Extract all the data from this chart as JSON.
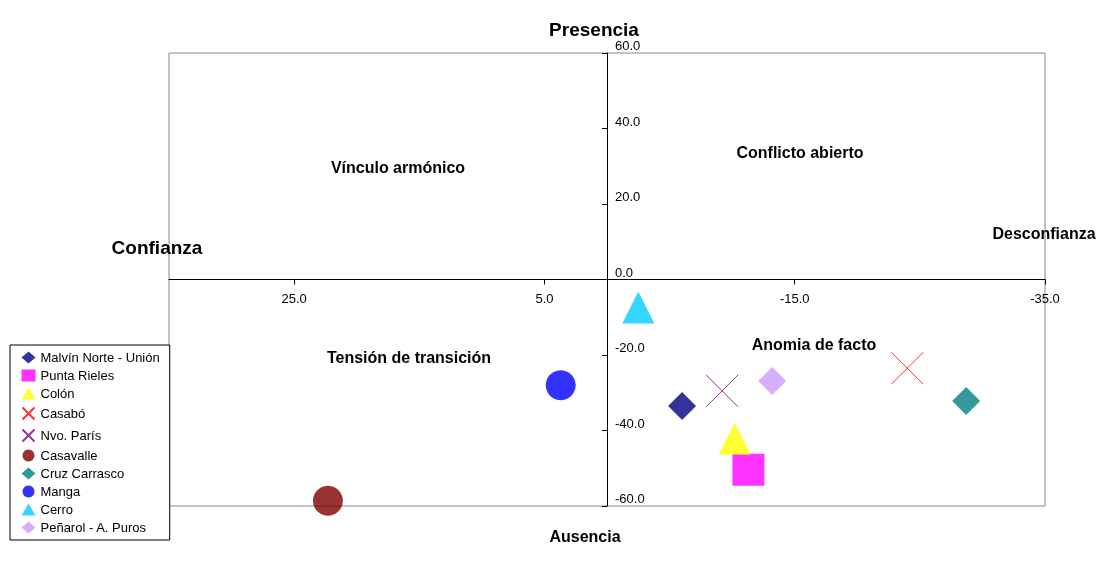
{
  "chart_data": {
    "type": "scatter",
    "annotations": [
      "Presencia",
      "Ausencia",
      "Confianza",
      "Desconfianza",
      "Vínculo armónico",
      "Conflicto abierto",
      "Tensión de transición",
      "Anomia de facto"
    ],
    "xlim": [
      35,
      -35
    ],
    "xticks": [
      {
        "value": 25,
        "label": "25.0"
      },
      {
        "value": 5,
        "label": "5.0"
      },
      {
        "value": -15,
        "label": "-15.0"
      },
      {
        "value": -35,
        "label": "-35.0"
      }
    ],
    "ylim": [
      -60,
      60
    ],
    "yticks": [
      {
        "value": -60,
        "label": "-60.0"
      },
      {
        "value": -40,
        "label": "-40.0"
      },
      {
        "value": -20,
        "label": "-20.0"
      },
      {
        "value": 0,
        "label": "0.0"
      },
      {
        "value": 20,
        "label": "20.0"
      },
      {
        "value": 40,
        "label": "40.0"
      },
      {
        "value": 60,
        "label": "60.0"
      }
    ],
    "grid": false,
    "legend": "bottom left",
    "series": [
      {
        "name": "Malvín Norte - Unión",
        "color": "#000080",
        "marker": "diamond",
        "x": [
          -6
        ],
        "values": [
          -33.5
        ]
      },
      {
        "name": "Punta Rieles",
        "color": "#ff00ff",
        "marker": "square",
        "x": [
          -11.3
        ],
        "values": [
          -50.4
        ]
      },
      {
        "name": "Colón",
        "color": "#ffff00",
        "marker": "triangle",
        "x": [
          -10.2
        ],
        "values": [
          -42.2
        ]
      },
      {
        "name": "Casabó",
        "color": "#ff0000",
        "marker": "cross",
        "x": [
          -24
        ],
        "values": [
          -23.5
        ]
      },
      {
        "name": "Nvo. París",
        "color": "#800080",
        "marker": "cross",
        "x": [
          -9.2
        ],
        "values": [
          -29.5
        ]
      },
      {
        "name": "Casavalle",
        "color": "#800000",
        "marker": "circle",
        "x": [
          22.3
        ],
        "values": [
          -58.6
        ]
      },
      {
        "name": "Cruz Carrasco",
        "color": "#008080",
        "marker": "diamond",
        "x": [
          -28.7
        ],
        "values": [
          -32.2
        ]
      },
      {
        "name": "Manga",
        "color": "#0000ff",
        "marker": "circle",
        "x": [
          3.7
        ],
        "values": [
          -28
        ]
      },
      {
        "name": "Cerro",
        "color": "#00ccff",
        "marker": "triangle",
        "x": [
          -2.5
        ],
        "values": [
          -7.4
        ]
      },
      {
        "name": "Peñarol - A. Puros",
        "color": "#cc99ff",
        "marker": "diamond",
        "x": [
          -13.2
        ],
        "values": [
          -26.9
        ]
      }
    ]
  }
}
